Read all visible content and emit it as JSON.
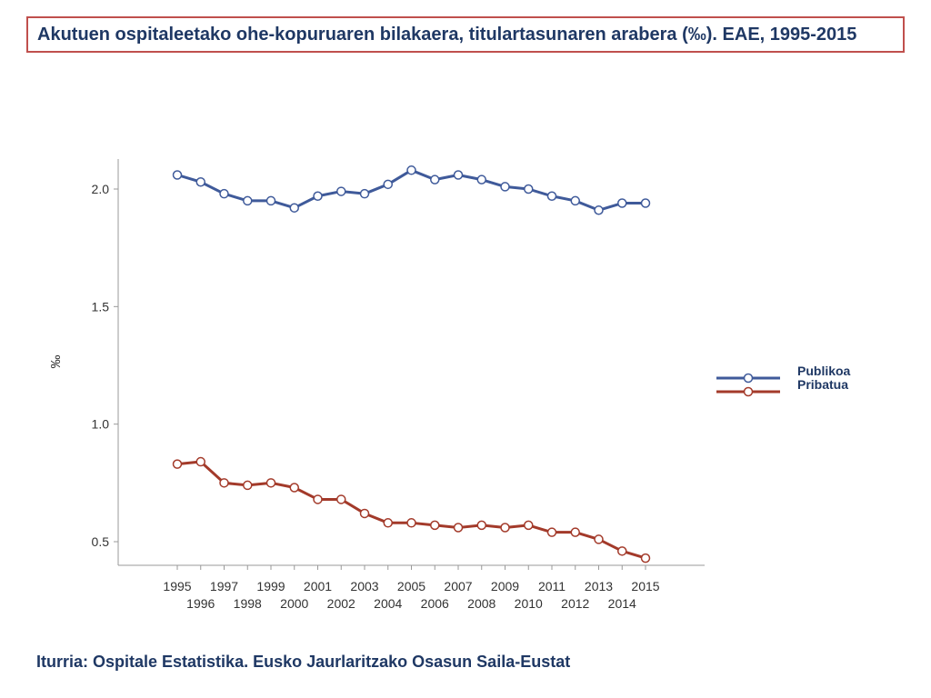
{
  "title": "Akutuen ospitaleetako ohe-kopuruaren bilakaera, titulartasunaren arabera (‰). EAE, 1995-2015",
  "source": "Iturria: Ospitale Estatistika. Eusko Jaurlaritzako Osasun Saila-Eustat",
  "colors": {
    "title_border": "#c0504d",
    "text": "#1f3864"
  },
  "chart_data": {
    "type": "line",
    "ylabel": "‰",
    "xlabel": "",
    "ylim": [
      0.42,
      2.12
    ],
    "yticks": [
      "0.5",
      "1.0",
      "1.5",
      "2.0"
    ],
    "ytick_values": [
      0.5,
      1.0,
      1.5,
      2.0
    ],
    "legend_position": "right",
    "grid": false,
    "x": [
      "1995",
      "1996",
      "1997",
      "1998",
      "1999",
      "2000",
      "2001",
      "2002",
      "2003",
      "2004",
      "2005",
      "2006",
      "2007",
      "2008",
      "2009",
      "2010",
      "2011",
      "2012",
      "2013",
      "2014",
      "2015"
    ],
    "series": [
      {
        "name": "Publikoa",
        "color": "#3f5a9a",
        "values": [
          2.06,
          2.03,
          1.98,
          1.95,
          1.95,
          1.92,
          1.97,
          1.99,
          1.98,
          2.02,
          2.08,
          2.04,
          2.06,
          2.04,
          2.01,
          2.0,
          1.97,
          1.95,
          1.91,
          1.94,
          1.94
        ]
      },
      {
        "name": "Pribatua",
        "color": "#a33a2a",
        "values": [
          0.83,
          0.84,
          0.75,
          0.74,
          0.75,
          0.73,
          0.68,
          0.68,
          0.62,
          0.58,
          0.58,
          0.57,
          0.56,
          0.57,
          0.56,
          0.57,
          0.54,
          0.54,
          0.51,
          0.46,
          0.43
        ]
      }
    ]
  }
}
